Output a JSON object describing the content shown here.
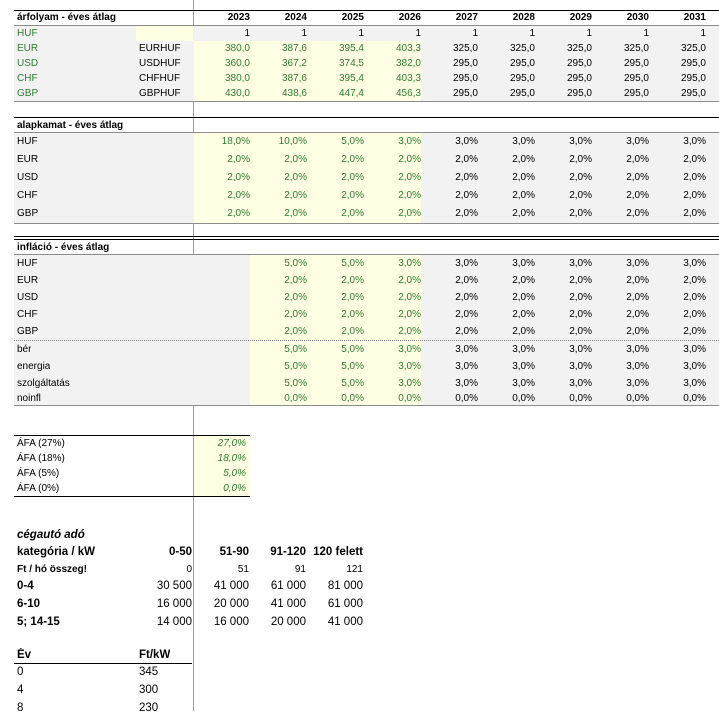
{
  "years": [
    "2023",
    "2024",
    "2025",
    "2026",
    "2027",
    "2028",
    "2029",
    "2030",
    "2031"
  ],
  "exchange": {
    "title": "árfolyam - éves átlag",
    "rows": [
      {
        "label": "HUF",
        "pair": "",
        "values": [
          "1",
          "1",
          "1",
          "1",
          "1",
          "1",
          "1",
          "1",
          "1"
        ]
      },
      {
        "label": "EUR",
        "pair": "EURHUF",
        "values": [
          "380,0",
          "387,6",
          "395,4",
          "403,3",
          "325,0",
          "325,0",
          "325,0",
          "325,0",
          "325,0"
        ]
      },
      {
        "label": "USD",
        "pair": "USDHUF",
        "values": [
          "360,0",
          "367,2",
          "374,5",
          "382,0",
          "295,0",
          "295,0",
          "295,0",
          "295,0",
          "295,0"
        ]
      },
      {
        "label": "CHF",
        "pair": "CHFHUF",
        "values": [
          "380,0",
          "387,6",
          "395,4",
          "403,3",
          "295,0",
          "295,0",
          "295,0",
          "295,0",
          "295,0"
        ]
      },
      {
        "label": "GBP",
        "pair": "GBPHUF",
        "values": [
          "430,0",
          "438,6",
          "447,4",
          "456,3",
          "295,0",
          "295,0",
          "295,0",
          "295,0",
          "295,0"
        ]
      }
    ]
  },
  "base_rate": {
    "title": "alapkamat - éves átlag",
    "rows": [
      {
        "label": "HUF",
        "values": [
          "18,0%",
          "10,0%",
          "5,0%",
          "3,0%",
          "3,0%",
          "3,0%",
          "3,0%",
          "3,0%",
          "3,0%"
        ]
      },
      {
        "label": "EUR",
        "values": [
          "2,0%",
          "2,0%",
          "2,0%",
          "2,0%",
          "2,0%",
          "2,0%",
          "2,0%",
          "2,0%",
          "2,0%"
        ]
      },
      {
        "label": "USD",
        "values": [
          "2,0%",
          "2,0%",
          "2,0%",
          "2,0%",
          "2,0%",
          "2,0%",
          "2,0%",
          "2,0%",
          "2,0%"
        ]
      },
      {
        "label": "CHF",
        "values": [
          "2,0%",
          "2,0%",
          "2,0%",
          "2,0%",
          "2,0%",
          "2,0%",
          "2,0%",
          "2,0%",
          "2,0%"
        ]
      },
      {
        "label": "GBP",
        "values": [
          "2,0%",
          "2,0%",
          "2,0%",
          "2,0%",
          "2,0%",
          "2,0%",
          "2,0%",
          "2,0%",
          "2,0%"
        ]
      }
    ]
  },
  "inflation": {
    "title": "infláció - éves átlag",
    "rows": [
      {
        "label": "HUF",
        "values": [
          "",
          "5,0%",
          "5,0%",
          "3,0%",
          "3,0%",
          "3,0%",
          "3,0%",
          "3,0%",
          "3,0%"
        ]
      },
      {
        "label": "EUR",
        "values": [
          "",
          "2,0%",
          "2,0%",
          "2,0%",
          "2,0%",
          "2,0%",
          "2,0%",
          "2,0%",
          "2,0%"
        ]
      },
      {
        "label": "USD",
        "values": [
          "",
          "2,0%",
          "2,0%",
          "2,0%",
          "2,0%",
          "2,0%",
          "2,0%",
          "2,0%",
          "2,0%"
        ]
      },
      {
        "label": "CHF",
        "values": [
          "",
          "2,0%",
          "2,0%",
          "2,0%",
          "2,0%",
          "2,0%",
          "2,0%",
          "2,0%",
          "2,0%"
        ]
      },
      {
        "label": "GBP",
        "values": [
          "",
          "2,0%",
          "2,0%",
          "2,0%",
          "2,0%",
          "2,0%",
          "2,0%",
          "2,0%",
          "2,0%"
        ]
      },
      {
        "label": "bér",
        "values": [
          "",
          "5,0%",
          "5,0%",
          "3,0%",
          "3,0%",
          "3,0%",
          "3,0%",
          "3,0%",
          "3,0%"
        ]
      },
      {
        "label": "energia",
        "values": [
          "",
          "5,0%",
          "5,0%",
          "3,0%",
          "3,0%",
          "3,0%",
          "3,0%",
          "3,0%",
          "3,0%"
        ]
      },
      {
        "label": "szolgáltatás",
        "values": [
          "",
          "5,0%",
          "5,0%",
          "3,0%",
          "3,0%",
          "3,0%",
          "3,0%",
          "3,0%",
          "3,0%"
        ]
      },
      {
        "label": "noinfl",
        "values": [
          "",
          "0,0%",
          "0,0%",
          "0,0%",
          "0,0%",
          "0,0%",
          "0,0%",
          "0,0%",
          "0,0%"
        ]
      }
    ]
  },
  "vat": [
    {
      "label": "ÁFA (27%)",
      "value": "27,0%"
    },
    {
      "label": "ÁFA (18%)",
      "value": "18,0%"
    },
    {
      "label": "ÁFA (5%)",
      "value": "5,0%"
    },
    {
      "label": "ÁFA (0%)",
      "value": "0,0%"
    }
  ],
  "company_car_tax": {
    "title": "cégautó adó",
    "header": {
      "label": "kategória / kW",
      "cols": [
        "0-50",
        "51-90",
        "91-120",
        "120 felett"
      ]
    },
    "monthly": {
      "label": "Ft / hó összeg!",
      "cols": [
        "0",
        "51",
        "91",
        "121"
      ]
    },
    "rows": [
      {
        "label": "0-4",
        "values": [
          "30 500",
          "41 000",
          "61 000",
          "81 000"
        ]
      },
      {
        "label": "6-10",
        "values": [
          "16 000",
          "20 000",
          "41 000",
          "61 000"
        ]
      },
      {
        "label": "5; 14-15",
        "values": [
          "14 000",
          "16 000",
          "20 000",
          "41 000"
        ]
      }
    ]
  },
  "year_ftkw": {
    "header": {
      "col1": "Év",
      "col2": "Ft/kW"
    },
    "rows": [
      {
        "year": "0",
        "value": "345"
      },
      {
        "year": "4",
        "value": "300"
      },
      {
        "year": "8",
        "value": "230"
      }
    ]
  },
  "colors": {
    "green": "#2e7d32",
    "input_fill": "#ffffe3",
    "grey_fill": "#f2f2f2"
  }
}
